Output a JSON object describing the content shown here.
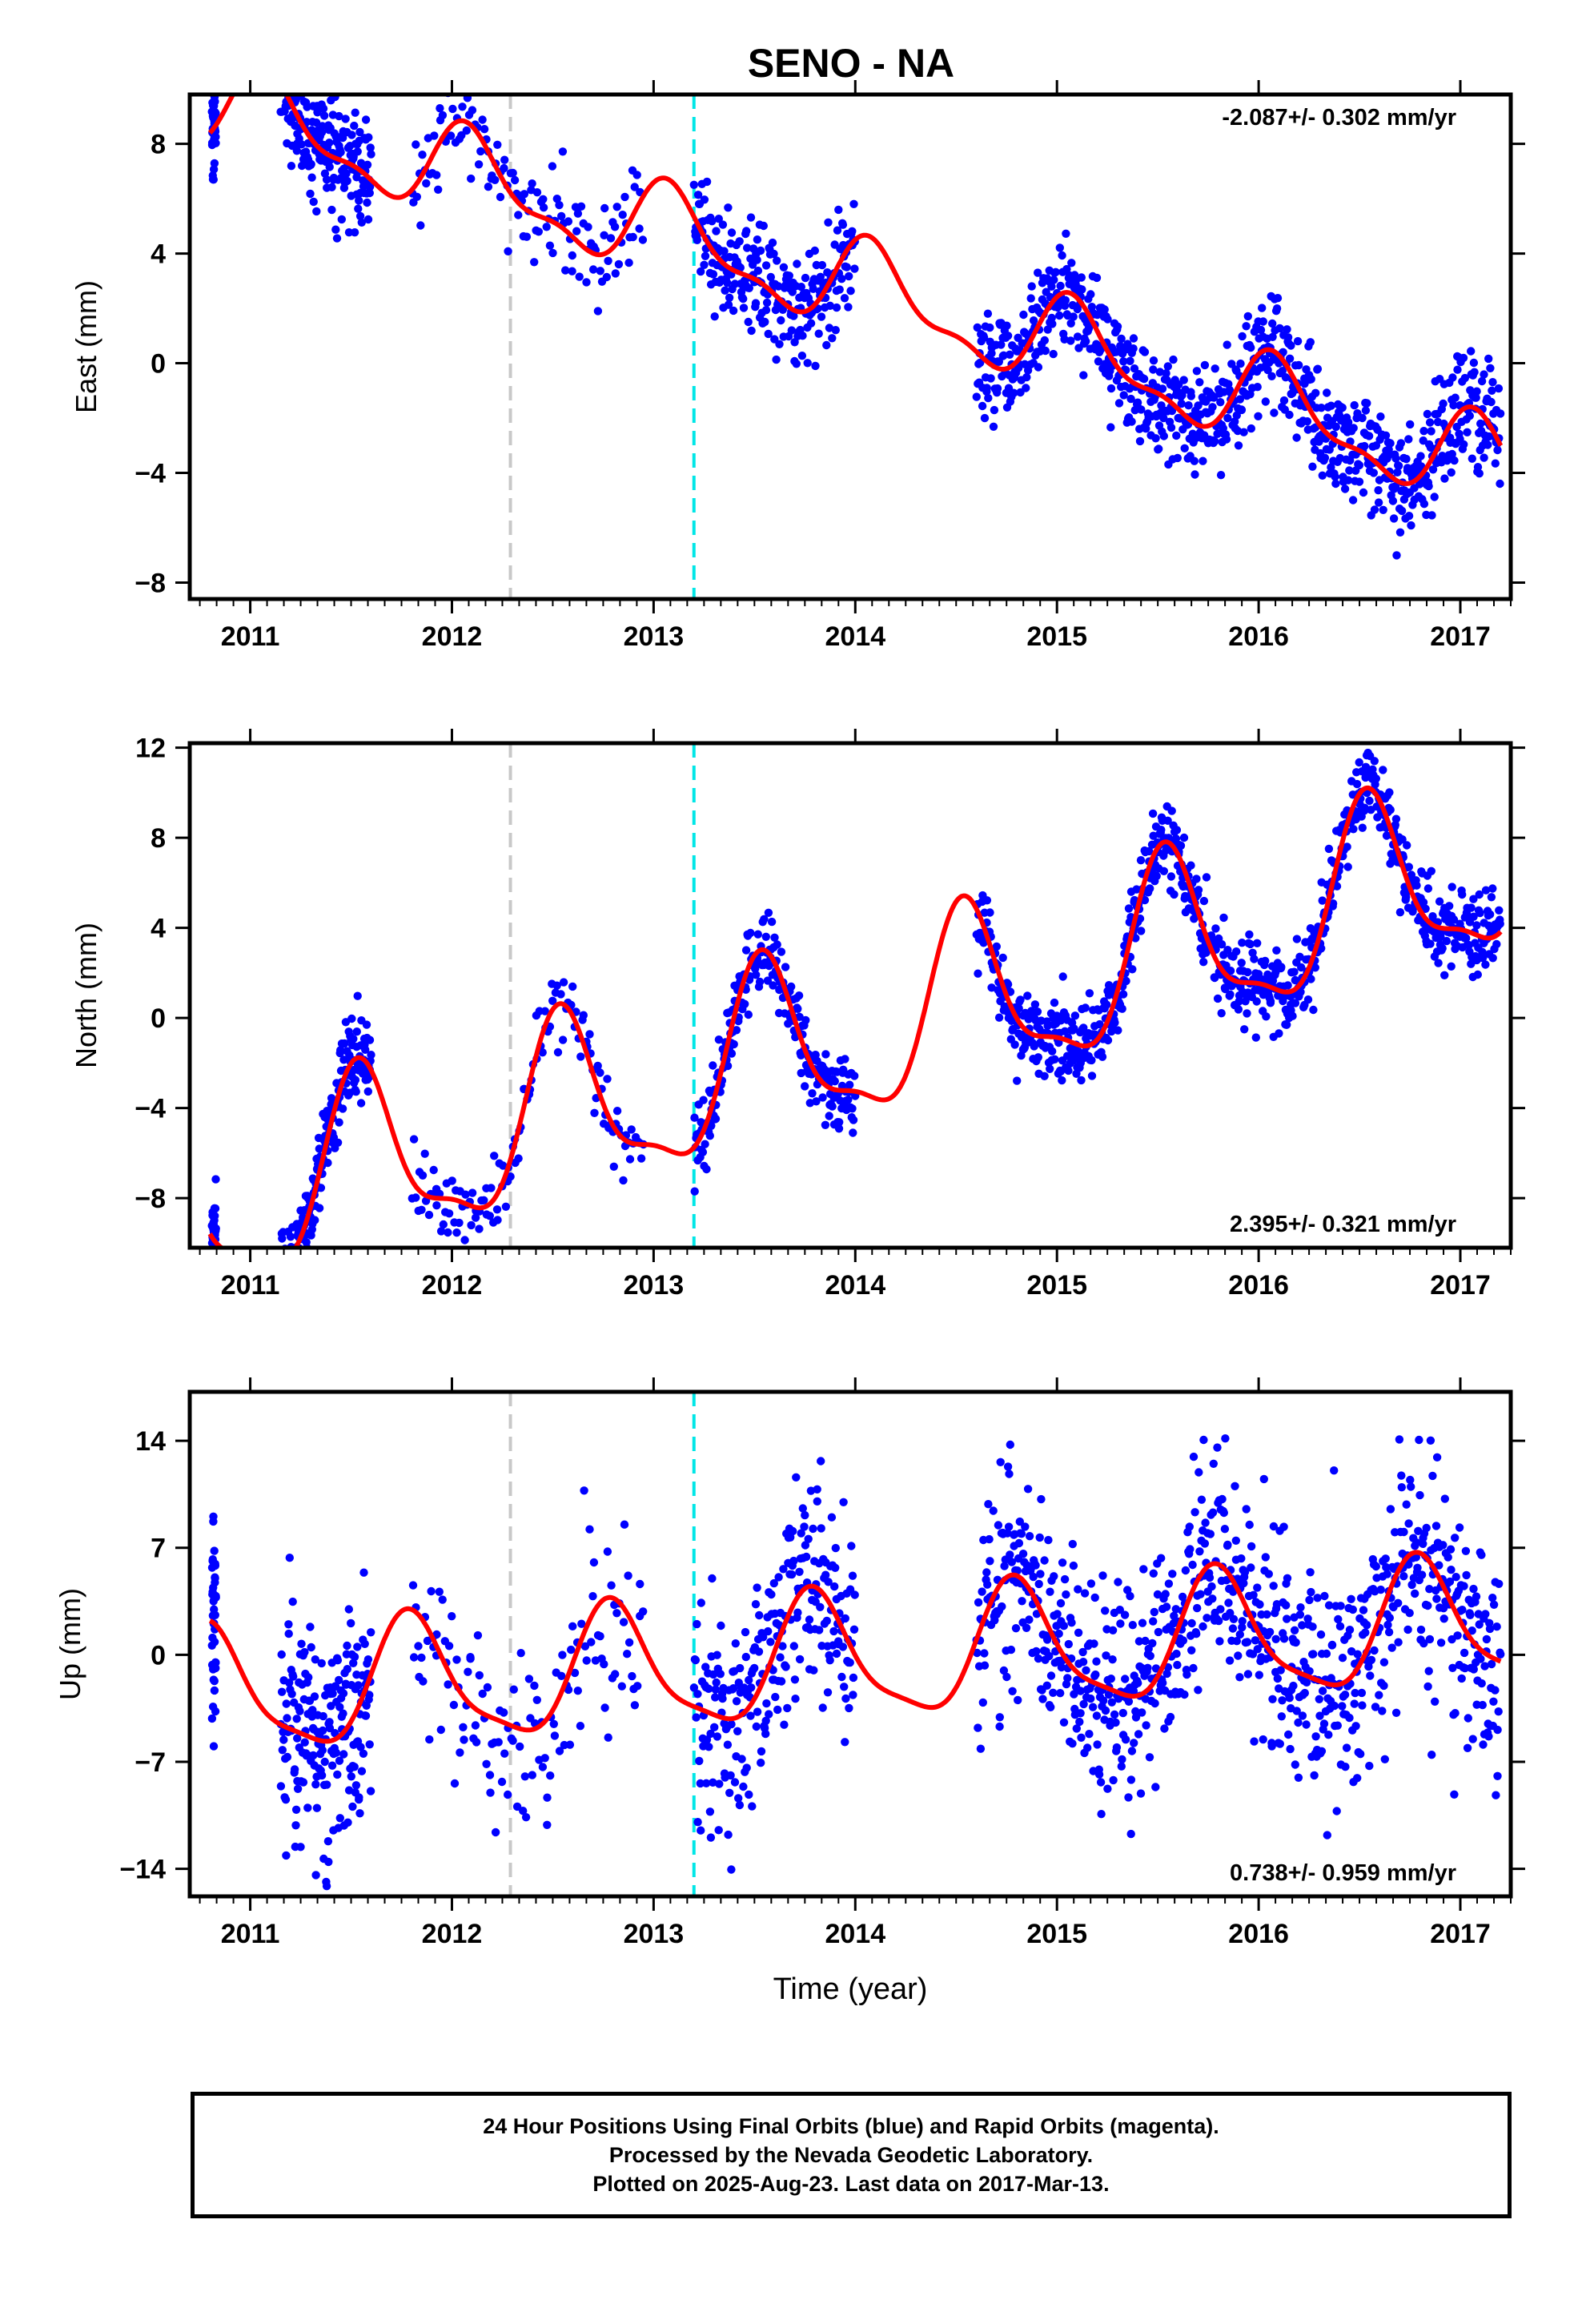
{
  "title": "SENO - NA",
  "colors": {
    "points": "#0000ff",
    "fit": "#ff0000",
    "gray_line": "#c8c8c8",
    "cyan_line": "#00e6e6",
    "frame": "#000000"
  },
  "chart_data": [
    {
      "type": "scatter",
      "panel": "east",
      "ylabel": "East (mm)",
      "xlabel": "",
      "xlim": [
        2010.7,
        2017.25
      ],
      "ylim": [
        -8.6,
        9.8
      ],
      "x_ticks": [
        2011,
        2012,
        2013,
        2014,
        2015,
        2016,
        2017
      ],
      "y_ticks": [
        8,
        4,
        0,
        -4,
        -8
      ],
      "y_tick_labels": [
        "8",
        "4",
        "0",
        "−4",
        "−8"
      ],
      "rate_label": "-2.087+/- 0.302 mm/yr",
      "rate_position": "top-right",
      "vertical_lines": [
        {
          "x": 2012.29,
          "color": "gray"
        },
        {
          "x": 2013.2,
          "color": "cyan"
        }
      ],
      "series": [
        {
          "kind": "points",
          "color": "blue",
          "segments": [
            [
              2010.81,
              2010.83
            ],
            [
              2011.15,
              2011.6
            ],
            [
              2011.8,
              2012.95
            ],
            [
              2013.2,
              2014.0
            ],
            [
              2014.6,
              2017.2
            ]
          ],
          "density": [
            40,
            200,
            130,
            250,
            850
          ],
          "trend": -2.087,
          "annual_amp": 1.9,
          "scatter_sd": 1.0
        },
        {
          "kind": "fit",
          "color": "red",
          "t0": 2011.0,
          "x_range": [
            2010.8,
            2017.2
          ]
        }
      ]
    },
    {
      "type": "scatter",
      "panel": "north",
      "ylabel": "North (mm)",
      "xlabel": "",
      "xlim": [
        2010.7,
        2017.25
      ],
      "ylim": [
        -10.2,
        12.2
      ],
      "x_ticks": [
        2011,
        2012,
        2013,
        2014,
        2015,
        2016,
        2017
      ],
      "y_ticks": [
        12,
        8,
        4,
        0,
        -4,
        -8
      ],
      "y_tick_labels": [
        "12",
        "8",
        "4",
        "0",
        "−4",
        "−8"
      ],
      "rate_label": "2.395+/- 0.321 mm/yr",
      "rate_position": "bottom-right",
      "vertical_lines": [
        {
          "x": 2012.29,
          "color": "gray"
        },
        {
          "x": 2013.2,
          "color": "cyan"
        }
      ],
      "series": [
        {
          "kind": "points",
          "color": "blue",
          "segments": [
            [
              2010.81,
              2010.83
            ],
            [
              2011.15,
              2011.6
            ],
            [
              2011.8,
              2012.95
            ],
            [
              2013.2,
              2014.0
            ],
            [
              2014.6,
              2017.2
            ]
          ],
          "density": [
            40,
            200,
            130,
            250,
            850
          ],
          "trend": 2.395,
          "annual_amp": 4.6,
          "scatter_sd": 0.9
        },
        {
          "kind": "fit",
          "color": "red",
          "t0": 2011.0,
          "x_range": [
            2010.8,
            2017.2
          ]
        }
      ]
    },
    {
      "type": "scatter",
      "panel": "up",
      "ylabel": "Up (mm)",
      "xlabel": "Time (year)",
      "xlim": [
        2010.7,
        2017.25
      ],
      "ylim": [
        -15.8,
        17.2
      ],
      "x_ticks": [
        2011,
        2012,
        2013,
        2014,
        2015,
        2016,
        2017
      ],
      "y_ticks": [
        14,
        7,
        0,
        -7,
        -14
      ],
      "y_tick_labels": [
        "14",
        "7",
        "0",
        "−7",
        "−14"
      ],
      "rate_label": "0.738+/- 0.959 mm/yr",
      "rate_position": "bottom-right",
      "vertical_lines": [
        {
          "x": 2012.29,
          "color": "gray"
        },
        {
          "x": 2013.2,
          "color": "cyan"
        }
      ],
      "series": [
        {
          "kind": "points",
          "color": "blue",
          "segments": [
            [
              2010.81,
              2010.83
            ],
            [
              2011.15,
              2011.6
            ],
            [
              2011.8,
              2012.95
            ],
            [
              2013.2,
              2014.0
            ],
            [
              2014.6,
              2017.2
            ]
          ],
          "density": [
            40,
            200,
            130,
            250,
            850
          ],
          "trend": 0.738,
          "annual_amp": 4.0,
          "scatter_sd": 3.6
        },
        {
          "kind": "fit",
          "color": "red",
          "t0": 2011.0,
          "x_range": [
            2010.8,
            2017.2
          ]
        }
      ]
    }
  ],
  "caption": {
    "line1": "24 Hour Positions Using Final Orbits (blue) and Rapid Orbits (magenta).",
    "line2": "Processed by the Nevada Geodetic Laboratory.",
    "line3": "Plotted on 2025-Aug-23. Last data on 2017-Mar-13."
  }
}
